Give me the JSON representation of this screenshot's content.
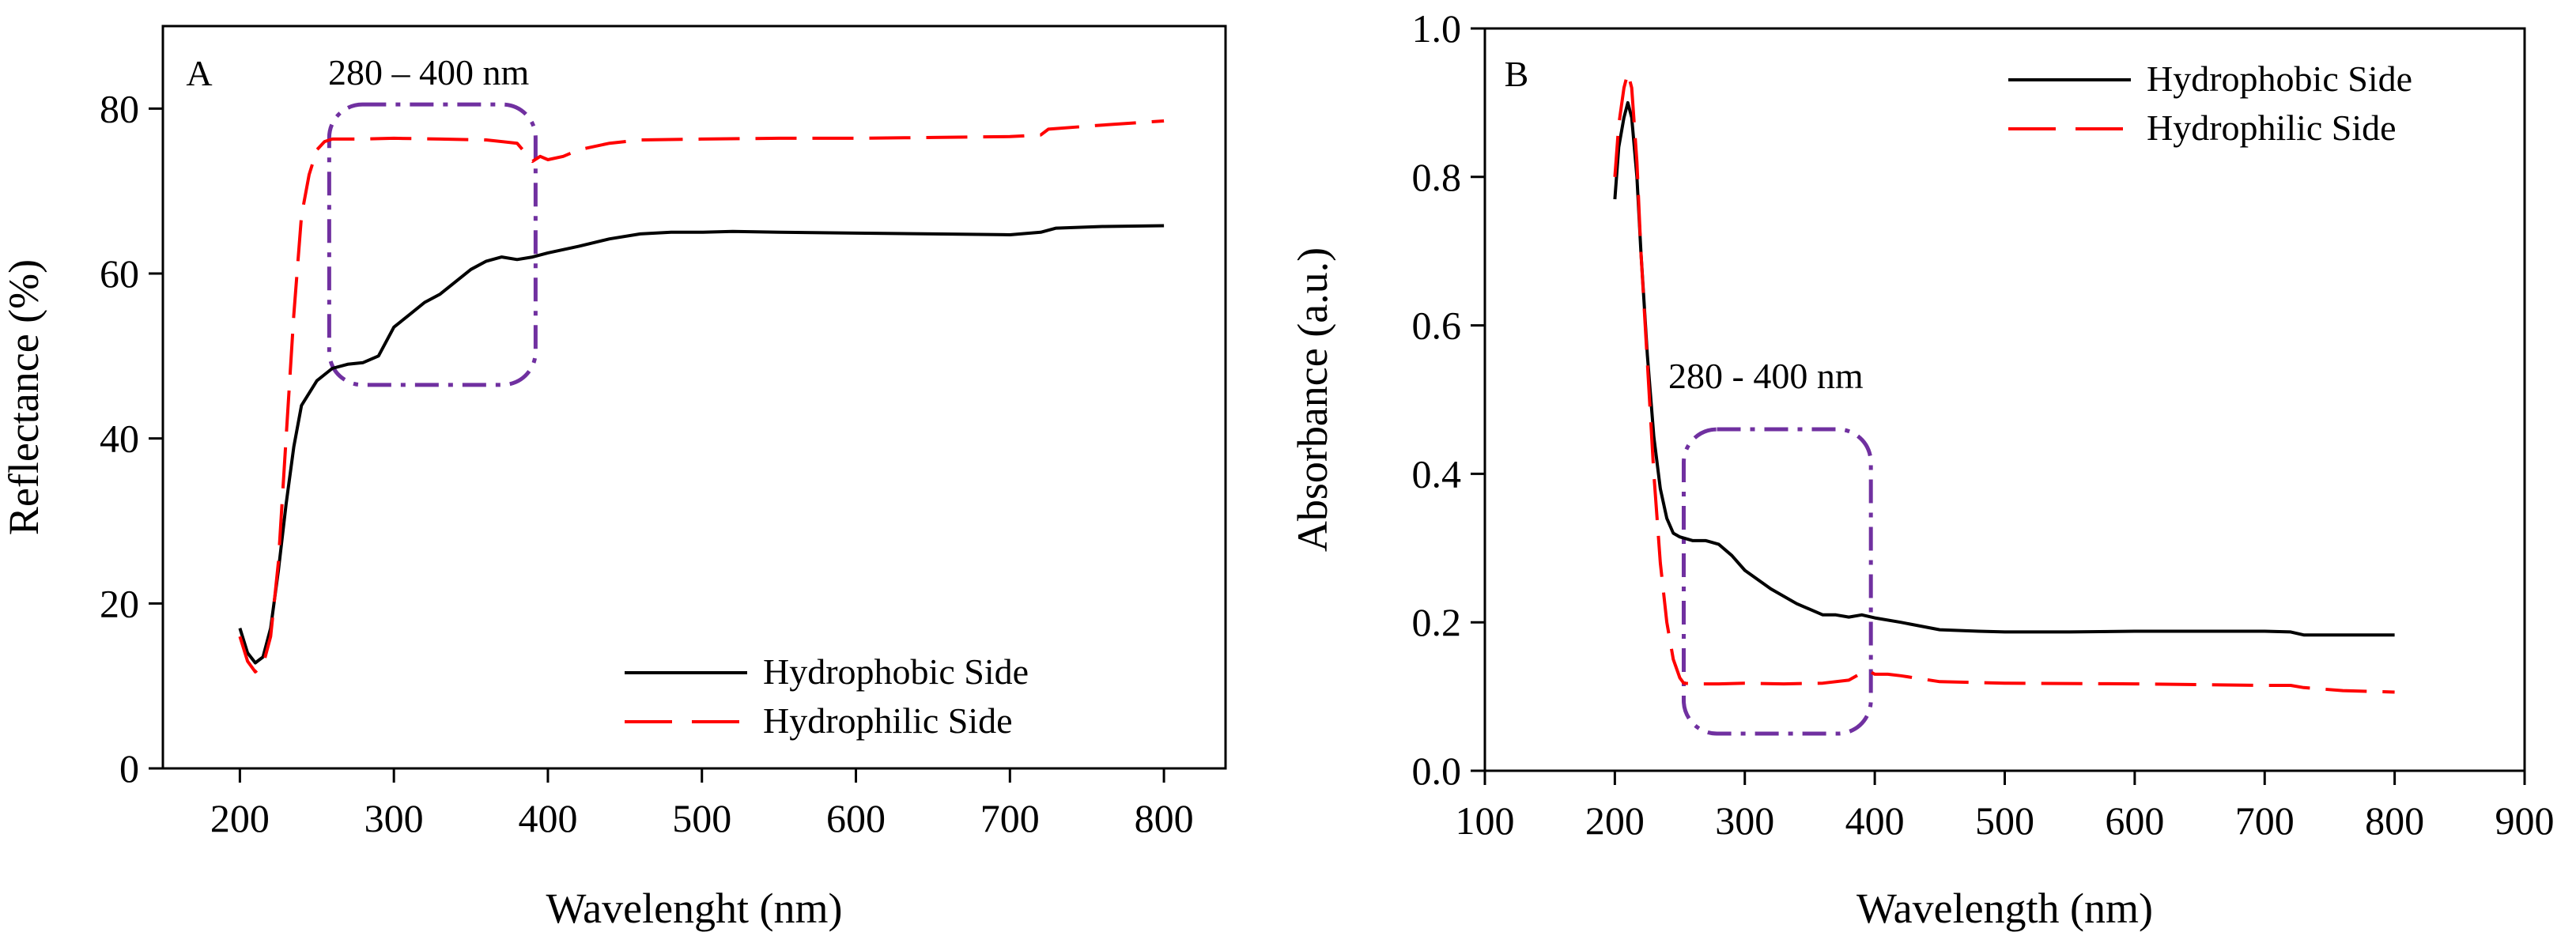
{
  "chart_data": [
    {
      "type": "line",
      "panel_label": "A",
      "xlabel": "Wavelenght (nm)",
      "ylabel": "Reflectance (%)",
      "xlim": [
        150,
        840
      ],
      "ylim": [
        0,
        90
      ],
      "xticks": [
        "200",
        "300",
        "400",
        "500",
        "600",
        "700",
        "800"
      ],
      "yticks": [
        "0",
        "20",
        "40",
        "60",
        "80"
      ],
      "legend_position": "bottom-right",
      "annotation": {
        "text": "280 – 400 nm",
        "box_x": [
          258,
          392
        ],
        "box_y": [
          46.5,
          80.5
        ]
      },
      "series": [
        {
          "name": "Hydrophobic Side",
          "color": "#000000",
          "style": "solid",
          "x": [
            200,
            205,
            210,
            215,
            220,
            225,
            230,
            235,
            240,
            250,
            260,
            270,
            280,
            290,
            300,
            310,
            320,
            330,
            340,
            350,
            360,
            370,
            380,
            390,
            400,
            420,
            440,
            460,
            480,
            500,
            520,
            550,
            600,
            650,
            700,
            720,
            730,
            760,
            800
          ],
          "y": [
            17,
            14,
            12.8,
            13.5,
            17,
            24,
            32,
            39,
            44,
            47,
            48.5,
            49,
            49.2,
            50,
            53.5,
            55,
            56.5,
            57.5,
            59,
            60.5,
            61.5,
            62,
            61.7,
            62,
            62.5,
            63.3,
            64.2,
            64.8,
            65,
            65,
            65.1,
            65,
            64.9,
            64.8,
            64.7,
            65,
            65.5,
            65.7,
            65.8
          ]
        },
        {
          "name": "Hydrophilic Side",
          "color": "#ff0000",
          "style": "dashed",
          "x": [
            200,
            205,
            210,
            215,
            220,
            225,
            230,
            235,
            240,
            245,
            250,
            255,
            260,
            280,
            300,
            330,
            360,
            380,
            390,
            395,
            400,
            410,
            420,
            440,
            460,
            500,
            550,
            600,
            650,
            700,
            720,
            725,
            760,
            800
          ],
          "y": [
            16,
            13,
            11.7,
            12.5,
            16,
            25,
            40,
            55,
            67,
            72,
            75,
            76,
            76.3,
            76.3,
            76.4,
            76.3,
            76.2,
            75.8,
            73.6,
            74.2,
            73.8,
            74.2,
            75,
            75.8,
            76.2,
            76.3,
            76.4,
            76.4,
            76.5,
            76.6,
            76.8,
            77.5,
            78,
            78.5
          ]
        }
      ]
    },
    {
      "type": "line",
      "panel_label": "B",
      "xlabel": "Wavelength (nm)",
      "ylabel": "Absorbance (a.u.)",
      "xlim": [
        100,
        900
      ],
      "ylim": [
        0,
        1.0
      ],
      "xticks": [
        "100",
        "200",
        "300",
        "400",
        "500",
        "600",
        "700",
        "800",
        "900"
      ],
      "yticks": [
        "0.0",
        "0.2",
        "0.4",
        "0.6",
        "0.8",
        "1.0"
      ],
      "legend_position": "top-right",
      "annotation": {
        "text": "280 - 400 nm",
        "box_x": [
          253,
          397
        ],
        "box_y": [
          0.05,
          0.46
        ]
      },
      "series": [
        {
          "name": "Hydrophobic Side",
          "color": "#000000",
          "style": "solid",
          "x": [
            200,
            203,
            207,
            210,
            213,
            217,
            220,
            225,
            230,
            235,
            240,
            245,
            250,
            260,
            270,
            280,
            290,
            300,
            320,
            340,
            360,
            370,
            380,
            390,
            400,
            420,
            450,
            480,
            500,
            550,
            600,
            650,
            700,
            720,
            730,
            800
          ],
          "y": [
            0.77,
            0.84,
            0.88,
            0.9,
            0.88,
            0.8,
            0.7,
            0.56,
            0.45,
            0.38,
            0.34,
            0.32,
            0.315,
            0.31,
            0.31,
            0.305,
            0.29,
            0.27,
            0.245,
            0.225,
            0.21,
            0.21,
            0.207,
            0.21,
            0.206,
            0.2,
            0.19,
            0.188,
            0.187,
            0.187,
            0.188,
            0.188,
            0.188,
            0.187,
            0.183,
            0.183
          ]
        },
        {
          "name": "Hydrophilic Side",
          "color": "#ff0000",
          "style": "dashed",
          "x": [
            200,
            203,
            207,
            210,
            213,
            217,
            220,
            225,
            230,
            235,
            240,
            245,
            250,
            253,
            260,
            280,
            300,
            330,
            360,
            380,
            390,
            395,
            400,
            410,
            420,
            450,
            500,
            600,
            700,
            720,
            730,
            760,
            800
          ],
          "y": [
            0.8,
            0.87,
            0.92,
            0.94,
            0.92,
            0.82,
            0.7,
            0.55,
            0.4,
            0.28,
            0.2,
            0.15,
            0.125,
            0.118,
            0.117,
            0.117,
            0.118,
            0.117,
            0.118,
            0.122,
            0.132,
            0.135,
            0.13,
            0.13,
            0.128,
            0.12,
            0.118,
            0.117,
            0.115,
            0.115,
            0.112,
            0.108,
            0.106
          ]
        }
      ]
    }
  ],
  "colors": {
    "hydrophobic": "#000000",
    "hydrophilic": "#ff0000",
    "annotation_box": "#7030a0"
  }
}
